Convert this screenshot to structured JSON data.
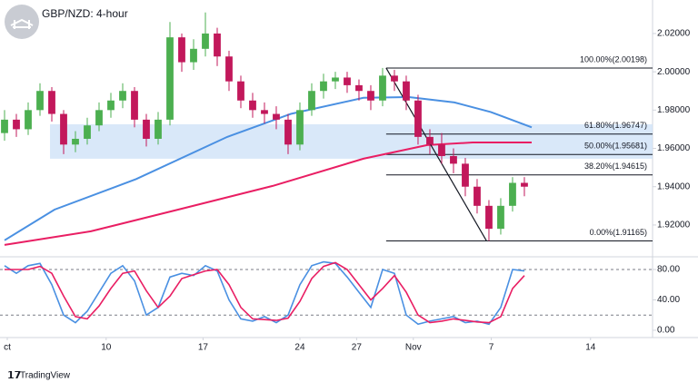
{
  "chart_data": [
    {
      "type": "candlestick",
      "title": "GBP/NZD: 4-hour",
      "source": "TradingView",
      "xlim": [
        -0.385,
        54.85
      ],
      "ylim": [
        1.9048,
        2.0375
      ],
      "yticks": [
        {
          "value": 1.92,
          "label": "1.92000"
        },
        {
          "value": 1.94,
          "label": "1.94000"
        },
        {
          "value": 1.96,
          "label": "1.96000"
        },
        {
          "value": 1.98,
          "label": "1.98000"
        },
        {
          "value": 2.0,
          "label": "2.00000"
        },
        {
          "value": 2.02,
          "label": "2.02000"
        }
      ],
      "up_color": "#4caf50",
      "down_color": "#c2185b",
      "open": [
        1.968,
        1.975,
        1.97,
        1.98,
        1.99,
        1.978,
        1.962,
        1.965,
        1.972,
        1.98,
        1.985,
        1.99,
        1.975,
        1.965,
        1.975,
        2.018,
        2.005,
        2.012,
        2.02,
        2.008,
        1.995,
        1.985,
        1.98,
        1.978,
        1.975,
        1.962,
        1.98,
        1.99,
        1.995,
        1.997,
        1.993,
        1.99,
        1.985,
        1.998,
        1.995,
        1.985,
        1.966,
        1.962,
        1.956,
        1.952,
        1.94,
        1.93,
        1.918,
        1.93,
        1.942
      ],
      "high": [
        1.98,
        1.978,
        1.984,
        1.994,
        1.992,
        1.98,
        1.969,
        1.976,
        1.984,
        1.989,
        1.994,
        1.992,
        1.978,
        1.979,
        2.026,
        2.02,
        2.017,
        2.031,
        2.023,
        2.011,
        1.998,
        1.989,
        1.984,
        1.982,
        1.978,
        1.984,
        1.994,
        1.999,
        2.0,
        2.0,
        1.996,
        1.993,
        2.002,
        2.001,
        1.998,
        1.988,
        1.97,
        1.968,
        1.96,
        1.955,
        1.944,
        1.933,
        1.934,
        1.945,
        1.945
      ],
      "low": [
        1.964,
        1.966,
        1.967,
        1.977,
        1.974,
        1.957,
        1.958,
        1.962,
        1.969,
        1.976,
        1.981,
        1.971,
        1.961,
        1.962,
        1.972,
        2.0,
        2.001,
        2.008,
        2.003,
        1.99,
        1.981,
        1.976,
        1.973,
        1.97,
        1.957,
        1.959,
        1.977,
        1.986,
        1.991,
        1.989,
        1.985,
        1.98,
        1.982,
        1.99,
        1.98,
        1.962,
        1.957,
        1.952,
        1.947,
        1.935,
        1.926,
        1.9117,
        1.915,
        1.927,
        1.935
      ],
      "close": [
        1.975,
        1.97,
        1.98,
        1.99,
        1.978,
        1.962,
        1.965,
        1.972,
        1.98,
        1.985,
        1.99,
        1.975,
        1.965,
        1.975,
        2.018,
        2.005,
        2.012,
        2.02,
        2.008,
        1.995,
        1.985,
        1.98,
        1.978,
        1.975,
        1.962,
        1.98,
        1.99,
        1.995,
        1.997,
        1.993,
        1.99,
        1.985,
        1.998,
        1.995,
        1.985,
        1.966,
        1.962,
        1.956,
        1.952,
        1.94,
        1.93,
        1.918,
        1.93,
        1.942,
        1.94
      ],
      "series": [
        {
          "color": "#4a90e2",
          "x": [
            0,
            4.23,
            11.15,
            18.85,
            24.23,
            30.38,
            34.23,
            38.08,
            41.15,
            44.62
          ],
          "values": [
            1.912,
            1.928,
            1.944,
            1.966,
            1.978,
            1.9864,
            1.9868,
            1.984,
            1.979,
            1.971
          ]
        },
        {
          "color": "#e91e63",
          "x": [
            0,
            7.31,
            15,
            22.69,
            30.38,
            35.77,
            39.62,
            44.62
          ],
          "values": [
            1.9096,
            1.9167,
            1.9285,
            1.9404,
            1.9546,
            1.9617,
            1.9631,
            1.9631
          ]
        }
      ],
      "zone": {
        "x0": 3.85,
        "y": [
          1.9546,
          1.9726
        ],
        "color": "#cfe2f7"
      },
      "trendline": {
        "x": [
          32.3,
          40.8
        ],
        "y": [
          2.00198,
          1.91165
        ]
      },
      "fib_start": 32.3,
      "fib_levels": [
        {
          "label": "100.00%(2.00198)",
          "value": 2.00198
        },
        {
          "label": "61.80%(1.96747)",
          "value": 1.96747
        },
        {
          "label": "50.00%(1.95681)",
          "value": 1.95681
        },
        {
          "label": "38.20%(1.94615)",
          "value": 1.94615
        },
        {
          "label": "0.00%(1.91165)",
          "value": 1.91165
        }
      ]
    },
    {
      "type": "line",
      "xlim": [
        -0.385,
        54.85
      ],
      "ylim": [
        -9.6,
        94.3
      ],
      "yticks": [
        {
          "value": 0,
          "label": "0.00"
        },
        {
          "value": 40,
          "label": "40.00"
        },
        {
          "value": 80,
          "label": "80.00"
        }
      ],
      "levels": [
        20,
        80
      ],
      "xticks": [
        {
          "value": 0.23,
          "label": "ct"
        },
        {
          "value": 8.6,
          "label": "10"
        },
        {
          "value": 16.8,
          "label": "17"
        },
        {
          "value": 25,
          "label": "24"
        },
        {
          "value": 29.8,
          "label": "27"
        },
        {
          "value": 34.6,
          "label": "Nov"
        },
        {
          "value": 41.2,
          "label": "7"
        },
        {
          "value": 49.6,
          "label": "14"
        }
      ],
      "series": [
        {
          "color": "#4a90e2",
          "values": [
            85,
            75,
            85,
            88,
            60,
            20,
            10,
            25,
            50,
            75,
            85,
            65,
            20,
            30,
            70,
            75,
            72,
            85,
            78,
            40,
            15,
            12,
            18,
            10,
            20,
            60,
            85,
            90,
            88,
            70,
            50,
            30,
            80,
            75,
            20,
            8,
            12,
            15,
            18,
            10,
            12,
            8,
            30,
            80,
            78
          ]
        },
        {
          "color": "#e91e63",
          "values": [
            80,
            80,
            80,
            84,
            75,
            45,
            18,
            15,
            32,
            55,
            75,
            78,
            52,
            30,
            45,
            68,
            73,
            78,
            80,
            60,
            30,
            15,
            14,
            13,
            16,
            38,
            68,
            84,
            89,
            80,
            60,
            40,
            55,
            72,
            50,
            20,
            10,
            12,
            15,
            13,
            11,
            10,
            18,
            55,
            72
          ]
        }
      ]
    }
  ]
}
